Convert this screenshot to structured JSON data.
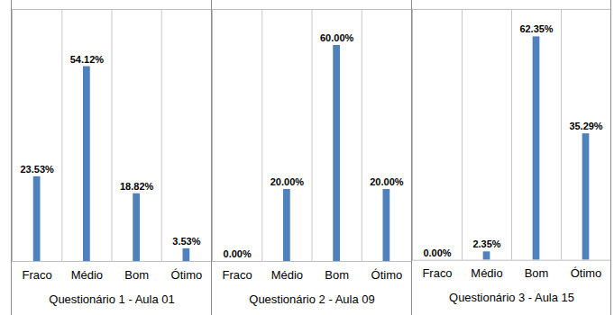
{
  "chart_data": [
    {
      "type": "bar",
      "x_label": "Questionário 1 - Aula 01",
      "categories": [
        "Fraco",
        "Médio",
        "Bom",
        "Ótimo"
      ],
      "values": [
        23.53,
        54.12,
        18.82,
        3.53
      ],
      "value_labels": [
        "23.53%",
        "54.12%",
        "18.82%",
        "3.53%"
      ],
      "color": "#4f81bd",
      "ylim": [
        0,
        70
      ],
      "data_labels": true,
      "tick_labels": "x"
    },
    {
      "type": "bar",
      "x_label": "Questionário 2 - Aula 09",
      "categories": [
        "Fraco",
        "Médio",
        "Bom",
        "Ótimo"
      ],
      "values": [
        0,
        20,
        60,
        20
      ],
      "value_labels": [
        "0.00%",
        "20.00%",
        "60.00%",
        "20.00%"
      ],
      "color": "#4f81bd",
      "ylim": [
        0,
        70
      ],
      "data_labels": true,
      "tick_labels": "x"
    },
    {
      "type": "bar",
      "x_label": "Questionário 3 - Aula 15",
      "categories": [
        "Fraco",
        "Médio",
        "Bom",
        "Ótimo"
      ],
      "values": [
        0,
        2.35,
        62.35,
        35.29
      ],
      "value_labels": [
        "0.00%",
        "2.35%",
        "62.35%",
        "35.29%"
      ],
      "color": "#4f81bd",
      "ylim": [
        0,
        70
      ],
      "data_labels": true,
      "tick_labels": "x"
    }
  ]
}
